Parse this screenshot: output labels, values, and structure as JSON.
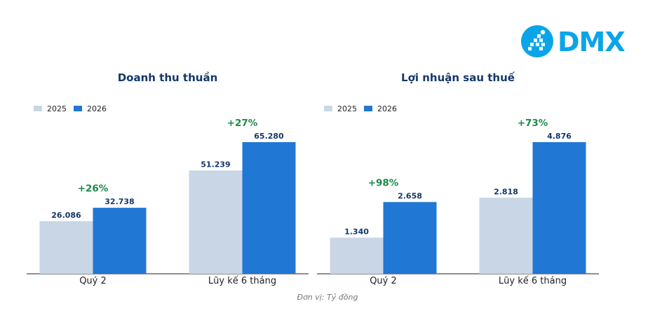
{
  "logo": {
    "text": "DMX",
    "color": "#0aa5e8"
  },
  "unit_note": "Đơn vị: Tỷ đồng",
  "colors": {
    "y2025": "#c9d6e6",
    "y2026": "#2077d4",
    "growth": "#1a8a4a",
    "title": "#13386b"
  },
  "chart_data": [
    {
      "type": "bar",
      "title": "Doanh thu thuần",
      "categories": [
        "Quý 2",
        "Lũy kế 6 tháng"
      ],
      "series": [
        {
          "name": "2025",
          "values": [
            26086,
            51239
          ],
          "labels": [
            "26.086",
            "51.239"
          ]
        },
        {
          "name": "2026",
          "values": [
            32738,
            65280
          ],
          "labels": [
            "32.738",
            "65.280"
          ]
        }
      ],
      "growth": [
        "+26%",
        "+27%"
      ],
      "ylim": [
        0,
        65280
      ],
      "legend": "top-left"
    },
    {
      "type": "bar",
      "title": "Lợi nhuận sau thuế",
      "categories": [
        "Quý 2",
        "Lũy kế 6 tháng"
      ],
      "series": [
        {
          "name": "2025",
          "values": [
            1340,
            2818
          ],
          "labels": [
            "1.340",
            "2.818"
          ]
        },
        {
          "name": "2026",
          "values": [
            2658,
            4876
          ],
          "labels": [
            "2.658",
            "4.876"
          ]
        }
      ],
      "growth": [
        "+98%",
        "+73%"
      ],
      "ylim": [
        0,
        4876
      ],
      "legend": "top-left"
    }
  ]
}
